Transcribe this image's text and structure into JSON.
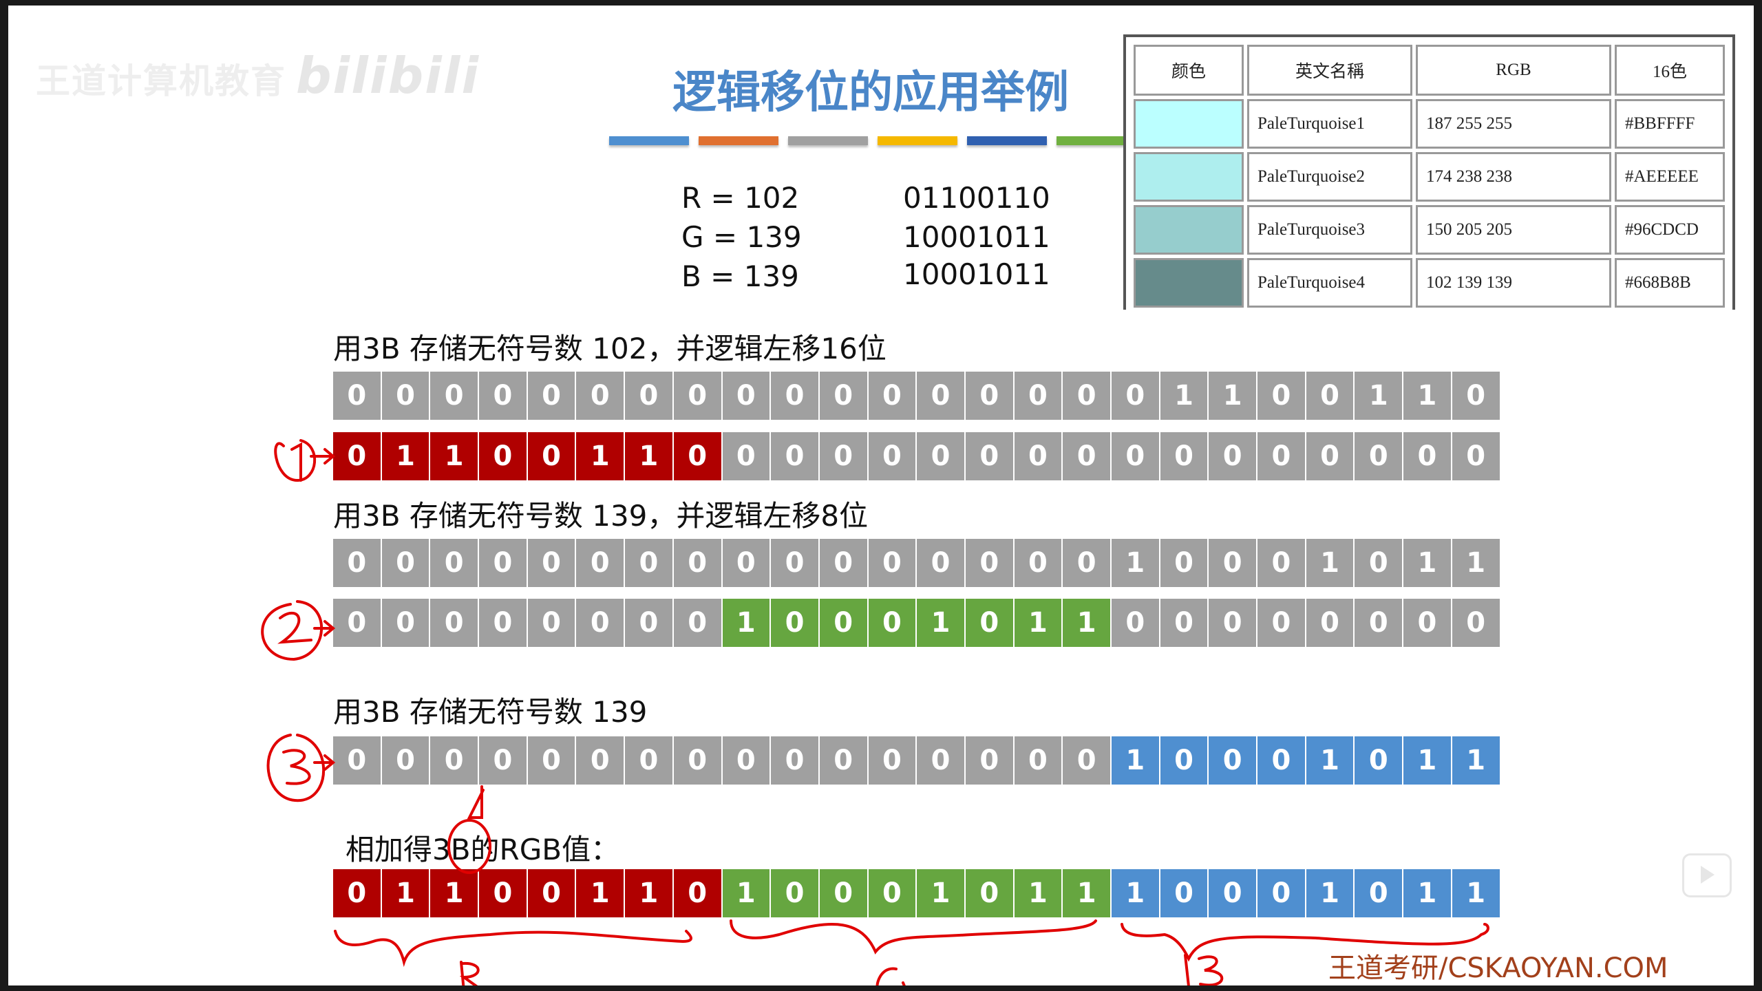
{
  "watermark": {
    "text": "王道计算机教育",
    "brand": "bilibili"
  },
  "title": "逻辑移位的应用举例",
  "title_bar_colors": [
    "#4e8fd0",
    "#e07030",
    "#a0a0a0",
    "#f5b800",
    "#3060b0",
    "#70b040"
  ],
  "values": [
    {
      "label": "R = 102",
      "binary": "01100110"
    },
    {
      "label": "G = 139",
      "binary": "10001011"
    },
    {
      "label": "B = 139",
      "binary": "10001011"
    }
  ],
  "color_table": {
    "headers": [
      "颜色",
      "英文名稱",
      "RGB",
      "16色"
    ],
    "rows": [
      {
        "swatch": "#BBFFFF",
        "name": "PaleTurquoise1",
        "rgb": "187 255 255",
        "hex": "#BBFFFF"
      },
      {
        "swatch": "#AEEEEE",
        "name": "PaleTurquoise2",
        "rgb": "174 238 238",
        "hex": "#AEEEEE"
      },
      {
        "swatch": "#96CDCD",
        "name": "PaleTurquoise3",
        "rgb": "150 205 205",
        "hex": "#96CDCD"
      },
      {
        "swatch": "#668B8B",
        "name": "PaleTurquoise4",
        "rgb": "102 139 139",
        "hex": "#668B8B"
      }
    ]
  },
  "headings": [
    "用3B 存储无符号数 102，并逻辑左移16位",
    "用3B 存储无符号数 139，并逻辑左移8位",
    "用3B 存储无符号数 139",
    "相加得3B的RGB值："
  ],
  "cell_colors": {
    "gray": "#a0a0a0",
    "red": "#b00000",
    "green": "#66a640",
    "blue": "#4f8fd0"
  },
  "bit_rows": [
    {
      "bits": "000000000000000001100110",
      "colors": "gggggggggggggggggggggggg"
    },
    {
      "bits": "011001100000000000000000",
      "colors": "rrrrrrrrgggggggggggggggg"
    },
    {
      "bits": "000000000000000010001011",
      "colors": "gggggggggggggggggggggggg"
    },
    {
      "bits": "000000001000101100000000",
      "colors": "ggggggggGGGGGGGGgggggggg"
    },
    {
      "bits": "000000000000000010001011",
      "colors": "ggggggggggggggggbbbbbbbb"
    },
    {
      "bits": "011001101000101110001011",
      "colors": "rrrrrrrrGGGGGGGGbbbbbbbb"
    }
  ],
  "annotations": {
    "marks": [
      "①",
      "②",
      "③"
    ],
    "brace_labels": [
      "R",
      "G",
      "B"
    ]
  },
  "footer": "王道考研/CSKAOYAN.COM"
}
